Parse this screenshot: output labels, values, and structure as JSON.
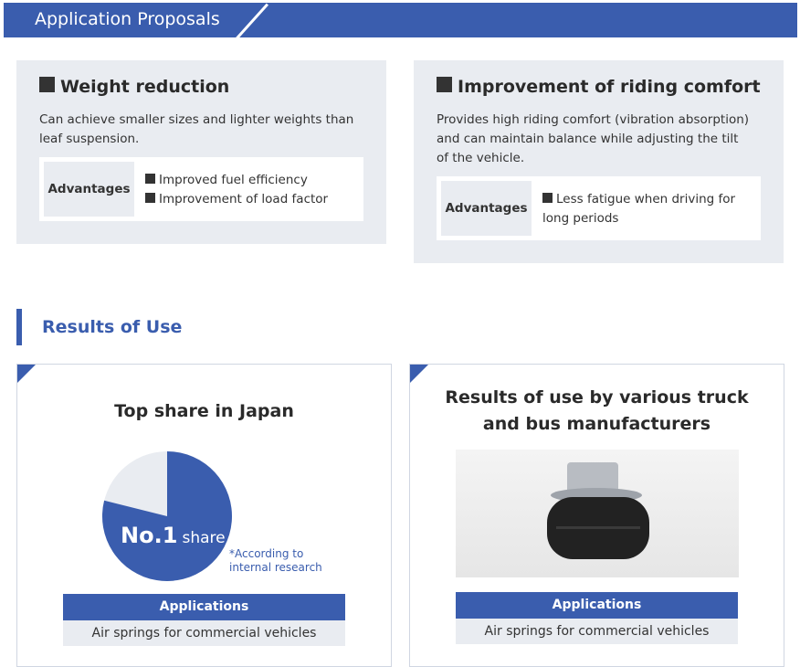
{
  "header": {
    "title": "Application Proposals"
  },
  "proposals": [
    {
      "title": "Weight reduction",
      "description": "Can achieve smaller sizes and lighter weights than leaf suspension.",
      "advantages_label": "Advantages",
      "advantages": [
        "Improved fuel efficiency",
        "Improvement of load factor"
      ]
    },
    {
      "title": "Improvement of riding comfort",
      "description": "Provides high riding comfort (vibration absorption) and can maintain balance while adjusting the tilt of the vehicle.",
      "advantages_label": "Advantages",
      "advantages": [
        "Less fatigue when driving for long periods"
      ]
    }
  ],
  "results": {
    "title": "Results of Use",
    "share": {
      "title": "Top share in Japan",
      "rank": "No.1",
      "rank_suffix": "share",
      "note": "*According to internal research",
      "applications_label": "Applications",
      "applications_value": "Air springs for commercial vehicles",
      "colors": {
        "share": "#3a5dae",
        "rest": "#e9ecf1"
      }
    },
    "manufacturers": {
      "title": "Results of use by various truck and bus manufacturers",
      "applications_label": "Applications",
      "applications_value": "Air springs for commercial vehicles"
    }
  }
}
